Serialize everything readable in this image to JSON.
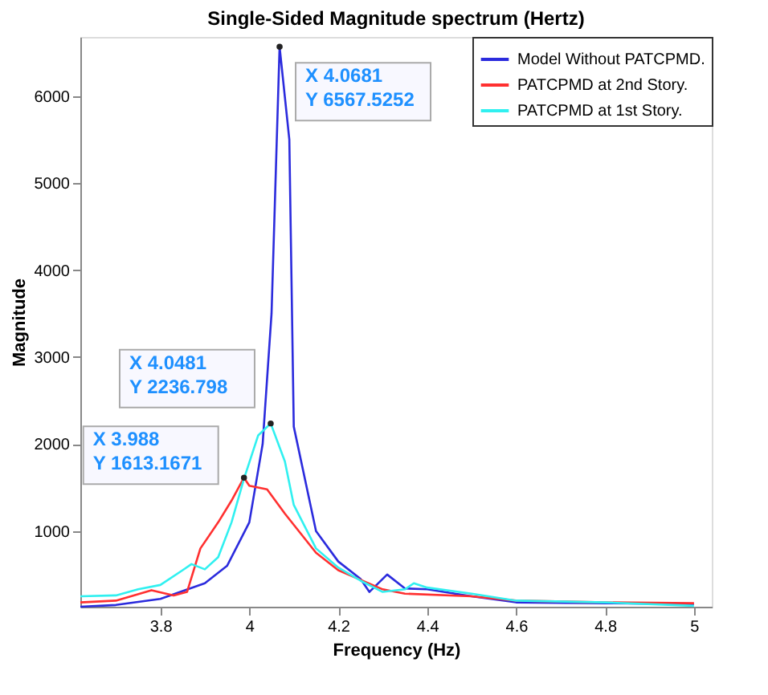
{
  "chart_data": {
    "type": "line",
    "title": "Single-Sided Magnitude spectrum (Hertz)",
    "xlabel": "Frequency (Hz)",
    "ylabel": "Magnitude",
    "xlim": [
      3.62,
      5.04
    ],
    "xticks": [
      {
        "value": 3.8,
        "label": "3.8"
      },
      {
        "value": 4,
        "label": "4"
      },
      {
        "value": 4.2,
        "label": "4.2"
      },
      {
        "value": 4.4,
        "label": "4.4"
      },
      {
        "value": 4.6,
        "label": "4.6"
      },
      {
        "value": 4.8,
        "label": "4.8"
      },
      {
        "value": 5,
        "label": "5"
      }
    ],
    "ylim": [
      130,
      6680
    ],
    "yticks": [
      1000,
      2000,
      3000,
      4000,
      5000,
      6000
    ],
    "grid": false,
    "legend": "top right",
    "line_style": "solid",
    "series": [
      {
        "name": "Model Without PATCPMD.",
        "color": "#2b2bdd",
        "x": [
          3.62,
          3.7,
          3.8,
          3.9,
          3.95,
          4.0,
          4.03,
          4.05,
          4.0681,
          4.09,
          4.1,
          4.15,
          4.2,
          4.25,
          4.27,
          4.31,
          4.35,
          4.4,
          4.5,
          4.6,
          4.8,
          5.0
        ],
        "values": [
          130,
          150,
          220,
          400,
          600,
          1100,
          2000,
          3500,
          6567.5252,
          5500,
          2200,
          1000,
          650,
          450,
          300,
          500,
          340,
          330,
          250,
          180,
          170,
          160
        ]
      },
      {
        "name": "PATCPMD at 2nd Story.",
        "color": "#ff3030",
        "x": [
          3.62,
          3.7,
          3.78,
          3.83,
          3.86,
          3.89,
          3.93,
          3.96,
          3.988,
          4.0,
          4.04,
          4.08,
          4.15,
          4.2,
          4.3,
          4.35,
          4.5,
          4.6,
          4.8,
          5.0
        ],
        "values": [
          180,
          200,
          320,
          260,
          300,
          800,
          1100,
          1350,
          1613.1671,
          1520,
          1480,
          1200,
          750,
          550,
          330,
          280,
          250,
          200,
          180,
          170
        ]
      },
      {
        "name": "PATCPMD at 1st Story.",
        "color": "#30f0f0",
        "x": [
          3.62,
          3.7,
          3.75,
          3.8,
          3.85,
          3.87,
          3.9,
          3.93,
          3.96,
          3.988,
          4.02,
          4.0481,
          4.08,
          4.1,
          4.15,
          4.2,
          4.25,
          4.3,
          4.35,
          4.37,
          4.4,
          4.5,
          4.6,
          4.8,
          5.0
        ],
        "values": [
          250,
          260,
          330,
          380,
          550,
          620,
          560,
          700,
          1100,
          1600,
          2100,
          2236.798,
          1800,
          1300,
          800,
          580,
          430,
          300,
          330,
          400,
          350,
          280,
          200,
          180,
          140
        ]
      }
    ],
    "annotations": [
      {
        "text": "X 4.0681\nY 6567.5252",
        "x": 4.0681,
        "y": 6567.5252
      },
      {
        "text": "X 4.0481\nY 2236.798",
        "x": 4.0481,
        "y": 2236.798
      },
      {
        "text": "X 3.988\nY 1613.1671",
        "x": 3.988,
        "y": 1613.1671
      }
    ]
  }
}
